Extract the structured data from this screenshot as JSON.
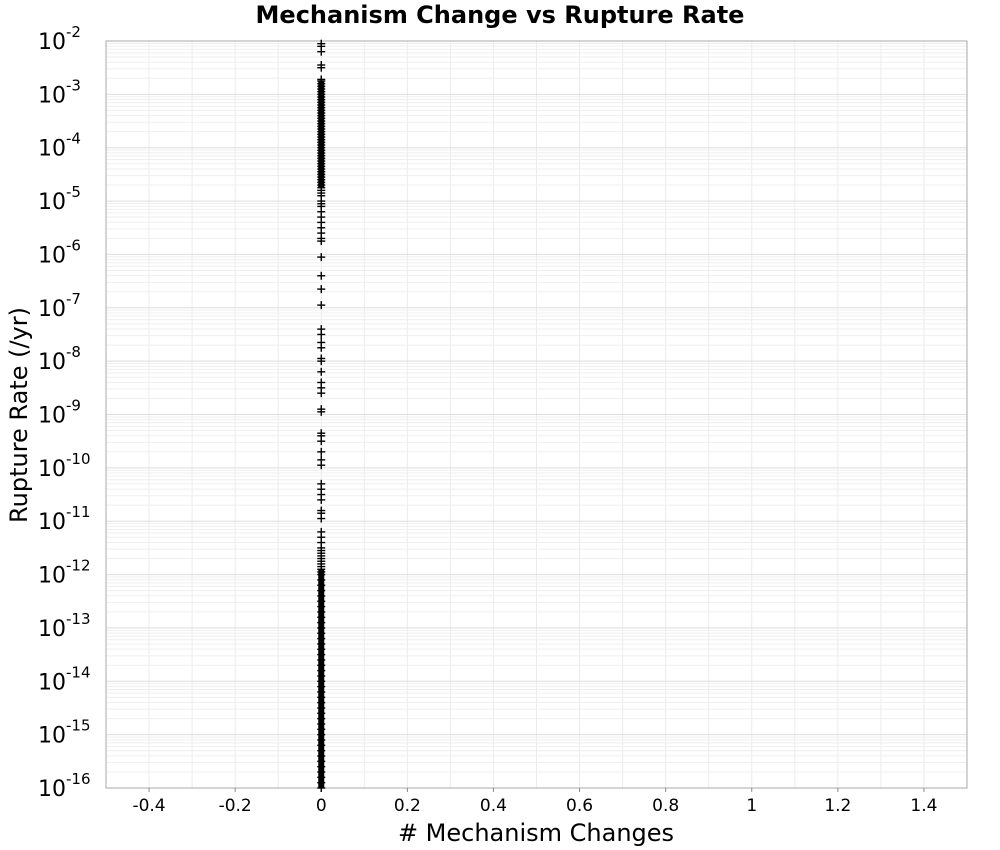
{
  "chart_data": {
    "type": "scatter",
    "title": "Mechanism Change vs Rupture Rate",
    "xlabel": "# Mechanism Changes",
    "ylabel": "Rupture Rate (/yr)",
    "xlim": [
      -0.5,
      1.5
    ],
    "ylim": [
      1e-16,
      0.01
    ],
    "yscale": "log",
    "grid": true,
    "marker": "plus",
    "marker_color": "#000000",
    "x_ticks": [
      "-0.4",
      "-0.2",
      "0",
      "0.2",
      "0.4",
      "0.6",
      "0.8",
      "1",
      "1.2",
      "1.4"
    ],
    "x_tick_values": [
      -0.4,
      -0.2,
      0,
      0.2,
      0.4,
      0.6,
      0.8,
      1,
      1.2,
      1.4
    ],
    "y_ticks": [
      {
        "base": "10",
        "exp": "-16"
      },
      {
        "base": "10",
        "exp": "-15"
      },
      {
        "base": "10",
        "exp": "-14"
      },
      {
        "base": "10",
        "exp": "-13"
      },
      {
        "base": "10",
        "exp": "-12"
      },
      {
        "base": "10",
        "exp": "-11"
      },
      {
        "base": "10",
        "exp": "-10"
      },
      {
        "base": "10",
        "exp": "-9"
      },
      {
        "base": "10",
        "exp": "-8"
      },
      {
        "base": "10",
        "exp": "-7"
      },
      {
        "base": "10",
        "exp": "-6"
      },
      {
        "base": "10",
        "exp": "-5"
      },
      {
        "base": "10",
        "exp": "-4"
      },
      {
        "base": "10",
        "exp": "-3"
      },
      {
        "base": "10",
        "exp": "-2"
      }
    ],
    "y_tick_exponents": [
      -16,
      -15,
      -14,
      -13,
      -12,
      -11,
      -10,
      -9,
      -8,
      -7,
      -6,
      -5,
      -4,
      -3,
      -2
    ],
    "series": [
      {
        "x": 0,
        "y_log10": [
          -2.05,
          -2.1,
          -2.2,
          -2.45,
          -2.5,
          -2.72,
          -2.75,
          -2.8,
          -2.85,
          -2.9,
          -2.95,
          -3.0,
          -3.05,
          -3.1,
          -3.15,
          -3.2,
          -3.25,
          -3.3,
          -3.35,
          -3.4,
          -3.45,
          -3.5,
          -3.55,
          -3.6,
          -3.65,
          -3.7,
          -3.75,
          -3.8,
          -3.85,
          -3.9,
          -3.95,
          -4.0,
          -4.05,
          -4.1,
          -4.15,
          -4.2,
          -4.25,
          -4.3,
          -4.35,
          -4.4,
          -4.45,
          -4.5,
          -4.55,
          -4.6,
          -4.65,
          -4.7,
          -4.75,
          -4.8,
          -4.85,
          -4.9,
          -5.0,
          -5.05,
          -5.1,
          -5.2,
          -5.3,
          -5.4,
          -5.5,
          -5.6,
          -5.7,
          -5.75,
          -6.05,
          -6.4,
          -6.65,
          -6.95,
          -7.4,
          -7.5,
          -7.65,
          -7.75,
          -7.95,
          -8.0,
          -8.2,
          -8.4,
          -8.5,
          -8.6,
          -8.9,
          -8.95,
          -9.35,
          -9.4,
          -9.5,
          -9.7,
          -9.85,
          -9.95,
          -10.3,
          -10.4,
          -10.5,
          -10.6,
          -10.8,
          -10.85,
          -10.95,
          -11.2,
          -11.3,
          -11.4,
          -11.5,
          -11.55,
          -11.6,
          -11.65,
          -11.7,
          -11.75,
          -11.8,
          -11.85,
          -11.9,
          -11.95,
          -12.0,
          -12.1,
          -12.2,
          -12.3,
          -12.4,
          -12.5,
          -12.6,
          -12.7,
          -12.8,
          -12.9,
          -13.0,
          -13.1,
          -13.2,
          -13.3,
          -13.4,
          -13.5,
          -13.6,
          -13.7,
          -13.8,
          -13.9,
          -14.0,
          -14.1,
          -14.2,
          -14.3,
          -14.4,
          -14.5,
          -14.6,
          -14.7,
          -14.8,
          -14.9,
          -15.0,
          -15.1,
          -15.2,
          -15.3,
          -15.4,
          -15.5,
          -15.6,
          -15.7,
          -15.8,
          -15.9,
          -16.0
        ]
      }
    ]
  }
}
